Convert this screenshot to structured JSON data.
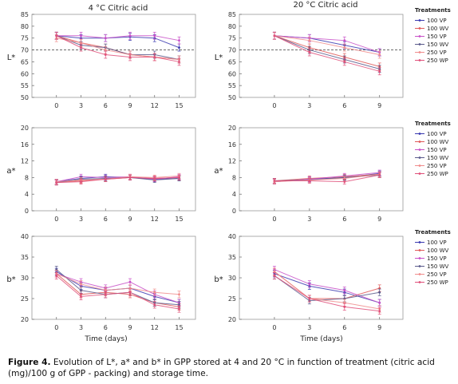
{
  "caption": {
    "label": "Figure 4.",
    "text": " Evolution of L*, a* and b* in GPP stored at 4 and 20 °C in function of treatment (citric acid (mg)/100 g of GPP - packing) and storage time."
  },
  "column_titles": [
    "4 °C Citric acid",
    "20 °C Citric acid"
  ],
  "x_axis_title": "Time (days)",
  "legend_title": "Treatments",
  "chart_data": [
    {
      "type": "line",
      "panel": "L* 4 °C",
      "ylabel": "L*",
      "x": [
        0,
        3,
        6,
        9,
        12,
        15
      ],
      "xlim": [
        -3,
        17
      ],
      "ylim": [
        50,
        85
      ],
      "yticks": [
        50,
        55,
        60,
        65,
        70,
        75,
        80,
        85
      ],
      "reference_line": 70,
      "series": [
        {
          "values": [
            76,
            75,
            75,
            75.5,
            75,
            71
          ],
          "color": "#3a3ab0"
        },
        {
          "values": [
            76,
            73,
            71,
            68,
            67,
            66
          ],
          "color": "#e05a5a"
        },
        {
          "values": [
            76,
            76,
            75,
            76,
            76,
            74
          ],
          "color": "#c850c8"
        },
        {
          "values": [
            76,
            72,
            71,
            68,
            68,
            66
          ],
          "color": "#5a5a8c"
        },
        {
          "values": [
            75,
            73,
            70,
            68,
            67,
            66
          ],
          "color": "#f08c8c"
        },
        {
          "values": [
            76,
            71,
            68,
            67,
            67,
            65
          ],
          "color": "#e0507a"
        }
      ]
    },
    {
      "type": "line",
      "panel": "L* 20 °C",
      "ylabel": "L*",
      "x": [
        0,
        3,
        6,
        9
      ],
      "xlim": [
        -3,
        11
      ],
      "ylim": [
        50,
        85
      ],
      "yticks": [
        50,
        55,
        60,
        65,
        70,
        75,
        80,
        85
      ],
      "reference_line": 70,
      "series": [
        {
          "name": "100 VP",
          "values": [
            76,
            75,
            72,
            69
          ],
          "color": "#3a3ab0"
        },
        {
          "name": "100 WV",
          "values": [
            76,
            71,
            67,
            63
          ],
          "color": "#e05a5a"
        },
        {
          "name": "150 VP",
          "values": [
            76,
            75,
            74,
            69
          ],
          "color": "#c850c8"
        },
        {
          "name": "150 WV",
          "values": [
            76,
            70,
            66,
            62
          ],
          "color": "#5a5a8c"
        },
        {
          "name": "250 VP",
          "values": [
            76,
            74,
            71,
            68
          ],
          "color": "#f08c8c"
        },
        {
          "name": "250 WP",
          "values": [
            76,
            69,
            65,
            61
          ],
          "color": "#e0507a"
        }
      ]
    },
    {
      "type": "line",
      "panel": "a* 4 °C",
      "ylabel": "a*",
      "x": [
        0,
        3,
        6,
        9,
        12,
        15
      ],
      "xlim": [
        -3,
        17
      ],
      "ylim": [
        0,
        20
      ],
      "yticks": [
        0,
        4,
        8,
        12,
        16,
        20
      ],
      "series": [
        {
          "values": [
            7.0,
            7.8,
            8.2,
            8.0,
            7.6,
            7.8
          ],
          "color": "#3a3ab0"
        },
        {
          "values": [
            6.8,
            7.2,
            7.6,
            8.0,
            7.8,
            8.0
          ],
          "color": "#e05a5a"
        },
        {
          "values": [
            7.0,
            8.2,
            8.0,
            8.2,
            7.6,
            8.2
          ],
          "color": "#c850c8"
        },
        {
          "values": [
            6.8,
            7.6,
            7.8,
            8.0,
            7.4,
            7.8
          ],
          "color": "#5a5a8c"
        },
        {
          "values": [
            7.0,
            7.4,
            7.6,
            8.2,
            8.0,
            8.4
          ],
          "color": "#f08c8c"
        },
        {
          "values": [
            6.8,
            7.0,
            7.6,
            8.0,
            7.8,
            8.0
          ],
          "color": "#e0507a"
        }
      ]
    },
    {
      "type": "line",
      "panel": "a* 20 °C",
      "ylabel": "a*",
      "x": [
        0,
        3,
        6,
        9
      ],
      "xlim": [
        -3,
        11
      ],
      "ylim": [
        0,
        20
      ],
      "yticks": [
        0,
        4,
        8,
        12,
        16,
        20
      ],
      "series": [
        {
          "name": "100 VP",
          "values": [
            7.0,
            7.6,
            8.0,
            9.0
          ],
          "color": "#3a3ab0"
        },
        {
          "name": "100 WV",
          "values": [
            7.2,
            7.8,
            8.2,
            8.8
          ],
          "color": "#e05a5a"
        },
        {
          "name": "150 VP",
          "values": [
            7.0,
            7.6,
            8.4,
            9.2
          ],
          "color": "#c850c8"
        },
        {
          "name": "150 WV",
          "values": [
            7.2,
            7.4,
            8.0,
            8.6
          ],
          "color": "#5a5a8c"
        },
        {
          "name": "250 VP",
          "values": [
            7.0,
            7.4,
            7.8,
            8.8
          ],
          "color": "#f08c8c"
        },
        {
          "name": "250 WP",
          "values": [
            7.2,
            7.2,
            7.0,
            8.6
          ],
          "color": "#e0507a"
        }
      ]
    },
    {
      "type": "line",
      "panel": "b* 4 °C",
      "ylabel": "b*",
      "x": [
        0,
        3,
        6,
        9,
        12,
        15
      ],
      "xlim": [
        -3,
        17
      ],
      "ylim": [
        20,
        40
      ],
      "yticks": [
        20,
        25,
        30,
        35,
        40
      ],
      "series": [
        {
          "values": [
            31.5,
            28.0,
            27.0,
            27.5,
            25.5,
            24.0
          ],
          "color": "#3a3ab0"
        },
        {
          "values": [
            31.0,
            26.0,
            26.5,
            26.0,
            24.0,
            23.0
          ],
          "color": "#e05a5a"
        },
        {
          "values": [
            31.0,
            29.0,
            27.5,
            29.0,
            26.0,
            24.0
          ],
          "color": "#c850c8"
        },
        {
          "values": [
            32.0,
            27.0,
            26.0,
            26.5,
            24.0,
            23.5
          ],
          "color": "#5a5a8c"
        },
        {
          "values": [
            31.0,
            28.5,
            27.0,
            27.5,
            26.5,
            26.0
          ],
          "color": "#f08c8c"
        },
        {
          "values": [
            30.5,
            25.5,
            26.0,
            26.5,
            23.5,
            22.5
          ],
          "color": "#e0507a"
        }
      ]
    },
    {
      "type": "line",
      "panel": "b* 20 °C",
      "ylabel": "b*",
      "x": [
        0,
        3,
        6,
        9
      ],
      "xlim": [
        -3,
        11
      ],
      "ylim": [
        20,
        40
      ],
      "yticks": [
        20,
        25,
        30,
        35,
        40
      ],
      "series": [
        {
          "name": "100 VP",
          "values": [
            31.0,
            28.0,
            26.5,
            24.0
          ],
          "color": "#3a3ab0"
        },
        {
          "name": "100 WV",
          "values": [
            31.5,
            25.0,
            25.0,
            27.5
          ],
          "color": "#e05a5a"
        },
        {
          "name": "150 VP",
          "values": [
            32.0,
            28.5,
            27.0,
            24.0
          ],
          "color": "#c850c8"
        },
        {
          "name": "150 WV",
          "values": [
            30.5,
            24.5,
            25.0,
            26.5
          ],
          "color": "#5a5a8c"
        },
        {
          "name": "250 VP",
          "values": [
            31.5,
            25.0,
            24.0,
            22.5
          ],
          "color": "#f08c8c"
        },
        {
          "name": "250 WP",
          "values": [
            30.5,
            25.0,
            23.0,
            22.0
          ],
          "color": "#e0507a"
        }
      ]
    }
  ]
}
